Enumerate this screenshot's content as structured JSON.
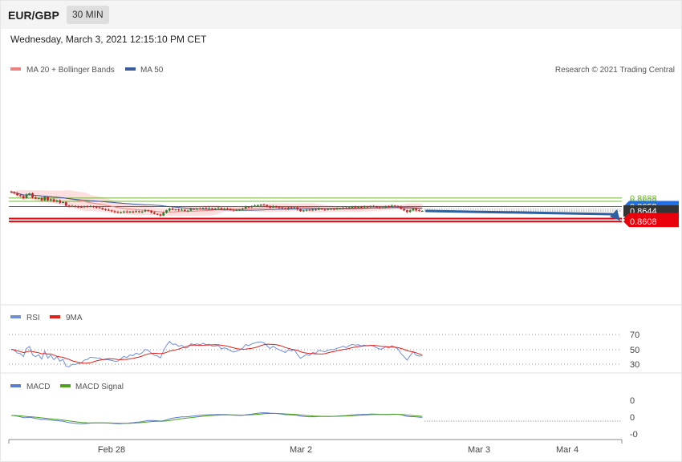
{
  "header": {
    "pair": "EUR/GBP",
    "timeframe": "30 MIN",
    "datetime": "Wednesday, March 3, 2021 12:15:10 PM CET"
  },
  "colors": {
    "ma20": "#f08080",
    "ma50": "#3a5a9a",
    "bands": "#fdd9d9",
    "up": "#2e7d32",
    "down": "#c62828",
    "support": "#e8000b",
    "resistance": "#74b833",
    "pivot": "#1e6fe8",
    "current": "#333333",
    "arrow": "#2e5fa0",
    "rsi": "#6f8fd8",
    "rsi_ma": "#e0201a",
    "macd": "#5b7bd5",
    "macd_signal": "#4ca21c"
  },
  "main_panel": {
    "legend": [
      {
        "label": "MA 20 + Bollinger Bands",
        "color": "#f08080"
      },
      {
        "label": "MA 50",
        "color": "#3a5a9a"
      }
    ],
    "credit": "Research © 2021 Trading Central",
    "levels": [
      {
        "value": "0.8688",
        "kind": "resistance"
      },
      {
        "value": "0.8677",
        "kind": "resistance"
      },
      {
        "value": "0.8659",
        "kind": "pivot"
      },
      {
        "value": "0.8644",
        "kind": "current"
      },
      {
        "value": "0.8618",
        "kind": "support"
      },
      {
        "value": "0.8608",
        "kind": "support"
      }
    ]
  },
  "rsi_panel": {
    "legend": [
      {
        "label": "RSI",
        "color": "#6f8fd8"
      },
      {
        "label": "9MA",
        "color": "#e0201a"
      }
    ],
    "ticks": [
      "70",
      "50",
      "30"
    ]
  },
  "macd_panel": {
    "legend": [
      {
        "label": "MACD",
        "color": "#5b7bd5"
      },
      {
        "label": "MACD Signal",
        "color": "#4ca21c"
      }
    ],
    "ticks": [
      "0",
      "0",
      "-0"
    ]
  },
  "x_axis": {
    "labels": [
      "Feb 28",
      "Mar 2",
      "Mar 3",
      "Mar 4"
    ]
  },
  "chart_data": {
    "type": "candlestick",
    "instrument": "EUR/GBP",
    "interval": "30 MIN",
    "y_unit": "price",
    "levels": [
      0.8688,
      0.8677,
      0.8659,
      0.8644,
      0.8618,
      0.8608
    ],
    "last_price": 0.8644,
    "close": [
      0.8708,
      0.8705,
      0.8698,
      0.8695,
      0.8688,
      0.87,
      0.8704,
      0.869,
      0.8686,
      0.8688,
      0.868,
      0.8692,
      0.868,
      0.8684,
      0.8676,
      0.868,
      0.8672,
      0.8674,
      0.8662,
      0.866,
      0.8661,
      0.8659,
      0.8658,
      0.8657,
      0.866,
      0.8659,
      0.866,
      0.8658,
      0.8656,
      0.8654,
      0.865,
      0.8648,
      0.8646,
      0.8643,
      0.864,
      0.8638,
      0.864,
      0.8642,
      0.8639,
      0.8642,
      0.864,
      0.8643,
      0.864,
      0.8642,
      0.8646,
      0.8644,
      0.8639,
      0.8634,
      0.8632,
      0.8628,
      0.8638,
      0.8646,
      0.8652,
      0.8648,
      0.8649,
      0.8646,
      0.8648,
      0.8644,
      0.8645,
      0.8651,
      0.865,
      0.8652,
      0.8651,
      0.8654,
      0.8652,
      0.8653,
      0.8651,
      0.8652,
      0.8654,
      0.865,
      0.8652,
      0.8651,
      0.8648,
      0.8646,
      0.8647,
      0.8649,
      0.8652,
      0.8658,
      0.8657,
      0.866,
      0.8662,
      0.8664,
      0.8665,
      0.8664,
      0.866,
      0.8656,
      0.866,
      0.8657,
      0.8655,
      0.8653,
      0.8651,
      0.8655,
      0.8654,
      0.8656,
      0.8649,
      0.8643,
      0.8646,
      0.8648,
      0.8646,
      0.865,
      0.8648,
      0.8652,
      0.865,
      0.8648,
      0.865,
      0.8651,
      0.865,
      0.8652,
      0.8653,
      0.8655,
      0.8653,
      0.8656,
      0.8658,
      0.8657,
      0.8658,
      0.8657,
      0.8659,
      0.8658,
      0.866,
      0.8659,
      0.8657,
      0.8655,
      0.8656,
      0.866,
      0.8658,
      0.8662,
      0.866,
      0.8658,
      0.8651,
      0.8646,
      0.864,
      0.8646,
      0.8652,
      0.8646,
      0.8644,
      0.8644
    ]
  }
}
